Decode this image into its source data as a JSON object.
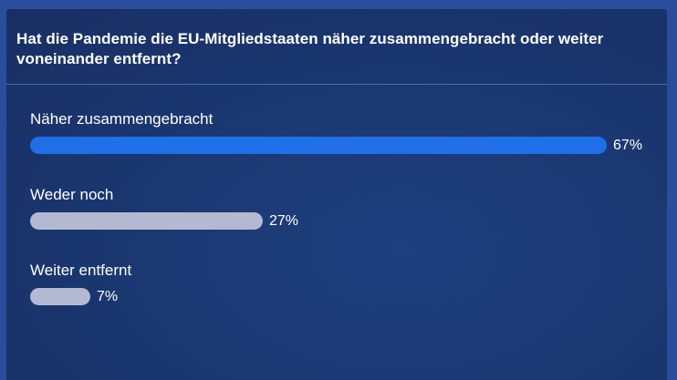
{
  "poll": {
    "question": "Hat die Pandemie die EU-Mitgliedstaaten näher zusammengebracht oder weiter voneinander entfernt?",
    "options": [
      {
        "label": "Näher zusammengebracht",
        "percent_label": "67%",
        "value": 67,
        "color": "#1e6fe8",
        "leading": true
      },
      {
        "label": "Weder noch",
        "percent_label": "27%",
        "value": 27,
        "color": "#b3b9d0",
        "leading": false
      },
      {
        "label": "Weiter entfernt",
        "percent_label": "7%",
        "value": 7,
        "color": "#b3b9d0",
        "leading": false
      }
    ]
  },
  "colors": {
    "page_background": "#2a4c9c",
    "panel_background": "#1b3872",
    "leading_bar": "#1e6fe8",
    "other_bar": "#b3b9d0",
    "text": "#ffffff"
  }
}
